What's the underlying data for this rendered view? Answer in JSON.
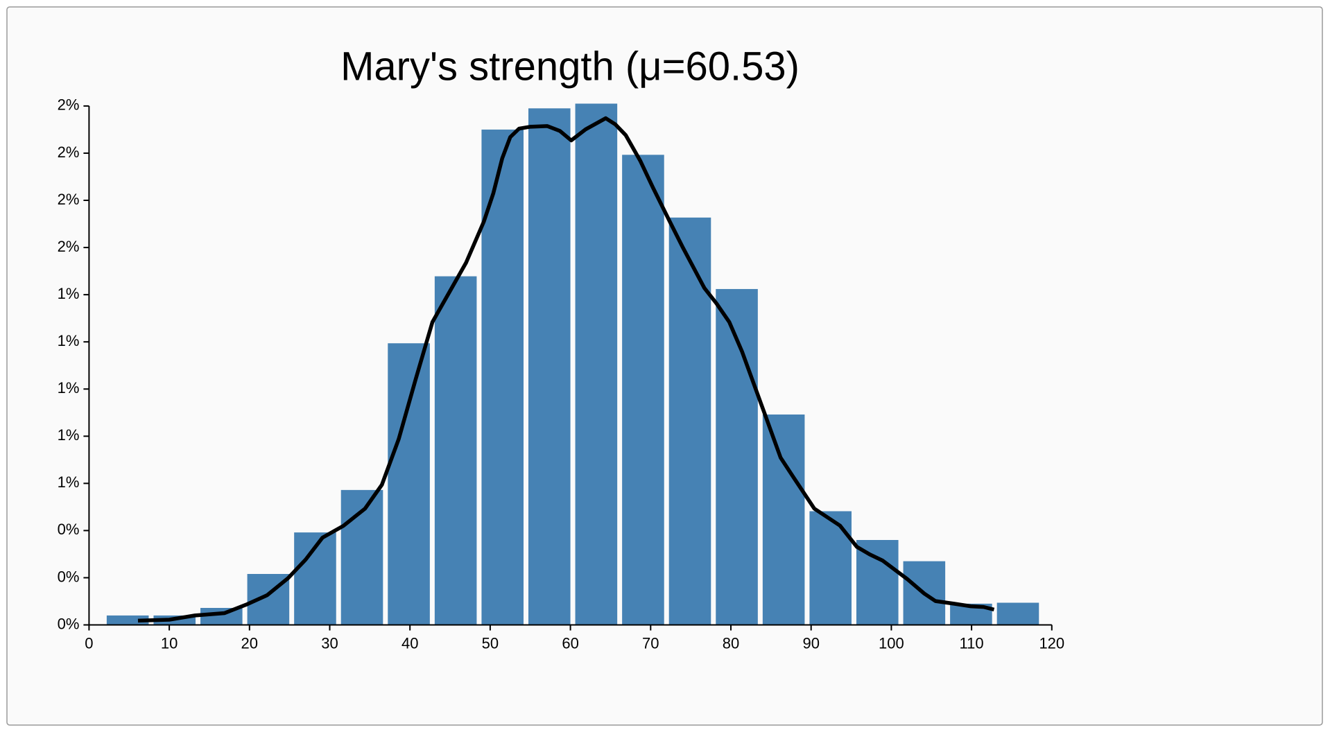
{
  "chart_data": {
    "type": "histogram",
    "title": "Mary's strength (μ=60.53)",
    "bins": [
      1.9,
      7.74,
      13.58,
      19.42,
      25.26,
      31.1,
      36.94,
      42.78,
      48.62,
      54.46,
      60.3,
      66.14,
      71.98,
      77.82,
      83.66,
      89.5,
      95.34,
      101.18,
      107.02,
      112.86,
      118.7
    ],
    "values": [
      0.0004,
      0.0004,
      0.00072,
      0.00216,
      0.00392,
      0.00572,
      0.01194,
      0.01478,
      0.021,
      0.0219,
      0.0221,
      0.01993,
      0.01727,
      0.01424,
      0.00892,
      0.00482,
      0.0036,
      0.0027,
      0.0009,
      0.00094
    ],
    "color": "#4682b4",
    "density": {
      "color": "#000000",
      "x": [
        6.1,
        10.0,
        13.2,
        16.9,
        19.6,
        22.2,
        24.8,
        27.0,
        29.1,
        31.7,
        34.4,
        36.5,
        38.6,
        40.7,
        42.8,
        44.9,
        47.0,
        49.2,
        50.4,
        51.5,
        52.5,
        53.6,
        55.0,
        57.1,
        58.7,
        60.1,
        61.9,
        64.4,
        65.6,
        66.9,
        68.7,
        70.3,
        72.4,
        74.0,
        76.7,
        78.2,
        79.8,
        81.4,
        84.1,
        86.2,
        87.8,
        90.4,
        92.0,
        93.6,
        95.7,
        97.3,
        98.9,
        102.0,
        104.1,
        105.5,
        107.8,
        109.9,
        111.5,
        112.8
      ],
      "values": [
        0.00018,
        0.00022,
        0.0004,
        0.0005,
        0.00086,
        0.00126,
        0.00198,
        0.00277,
        0.0037,
        0.0042,
        0.00493,
        0.00594,
        0.00788,
        0.0104,
        0.01284,
        0.0141,
        0.01536,
        0.01709,
        0.01831,
        0.01978,
        0.02068,
        0.02104,
        0.02112,
        0.02115,
        0.02094,
        0.02054,
        0.02101,
        0.02148,
        0.02122,
        0.02076,
        0.01968,
        0.01853,
        0.01709,
        0.01601,
        0.01428,
        0.01363,
        0.01284,
        0.01158,
        0.00906,
        0.00709,
        0.00626,
        0.00493,
        0.00457,
        0.00421,
        0.00331,
        0.00299,
        0.00273,
        0.00194,
        0.00133,
        0.00101,
        0.0009,
        0.00079,
        0.00076,
        0.00065
      ]
    },
    "xlim": [
      0,
      120
    ],
    "xticks": [
      0,
      10,
      20,
      30,
      40,
      50,
      60,
      70,
      80,
      90,
      100,
      110,
      120
    ],
    "ylim": [
      0,
      0.022
    ],
    "yticks": [
      {
        "value": 0,
        "label": "0%"
      },
      {
        "value": 0.002,
        "label": "0%"
      },
      {
        "value": 0.004,
        "label": "0%"
      },
      {
        "value": 0.006,
        "label": "1%"
      },
      {
        "value": 0.008,
        "label": "1%"
      },
      {
        "value": 0.01,
        "label": "1%"
      },
      {
        "value": 0.012,
        "label": "1%"
      },
      {
        "value": 0.014,
        "label": "1%"
      },
      {
        "value": 0.016,
        "label": "2%"
      },
      {
        "value": 0.018,
        "label": "2%"
      },
      {
        "value": 0.02,
        "label": "2%"
      },
      {
        "value": 0.022,
        "label": "2%"
      }
    ]
  }
}
